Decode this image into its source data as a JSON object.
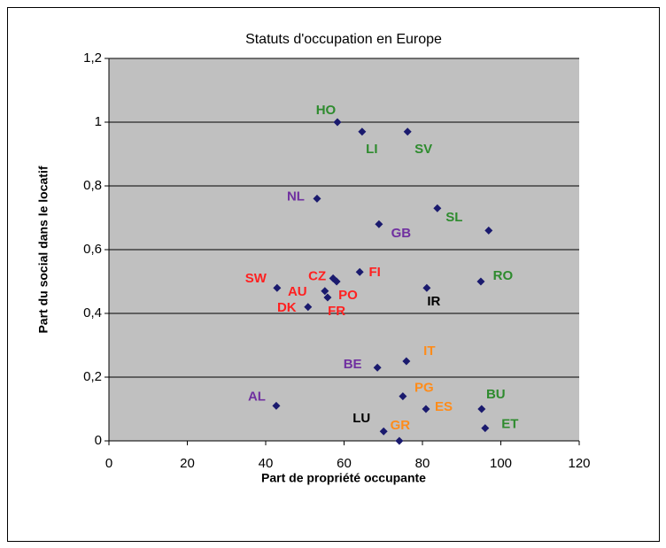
{
  "chart_data": {
    "type": "scatter",
    "title": "Statuts d'occupation en Europe",
    "x_label": "Part de propriété occupante",
    "y_label": "Part du social dans le locatif",
    "xlim": [
      0,
      120
    ],
    "xticks": [
      0,
      20,
      40,
      60,
      80,
      100,
      120
    ],
    "ylim": [
      0,
      1.2
    ],
    "yticks": [
      0,
      {
        "value": 0.2,
        "label": "0,2"
      },
      {
        "value": 0.4,
        "label": "0,4"
      },
      {
        "value": 0.6,
        "label": "0,6"
      },
      {
        "value": 0.8,
        "label": "0,8"
      },
      1,
      {
        "value": 1.2,
        "label": "1,2"
      }
    ],
    "grid": true,
    "plot_background": "#c0c0c0",
    "series": [
      {
        "color": "#1a1a6e",
        "x": [
          58.3,
          64.6,
          76.2,
          53.1,
          68.9,
          83.8,
          96.9,
          94.9,
          81.1,
          64.0,
          57.2,
          58.1,
          42.9,
          55.1,
          55.8,
          50.8,
          75.9,
          68.5,
          75.0,
          42.7,
          80.9,
          95.1,
          96.0,
          70.1,
          74.1
        ],
        "values": [
          1.0,
          0.97,
          0.97,
          0.76,
          0.68,
          0.73,
          0.66,
          0.5,
          0.48,
          0.53,
          0.51,
          0.5,
          0.48,
          0.47,
          0.45,
          0.42,
          0.25,
          0.23,
          0.14,
          0.11,
          0.1,
          0.1,
          0.04,
          0.03,
          0.0
        ],
        "point_labels": [
          "HO",
          "LI",
          "SV",
          "NL",
          "GB",
          "SL",
          null,
          "RO",
          "IR",
          "FI",
          "CZ",
          "FR",
          "SW",
          "AU",
          "PO",
          "DK",
          "IT",
          "BE",
          "PG",
          "AL",
          "ES",
          "BU",
          "ET",
          "LU",
          "GR"
        ],
        "label_colors": [
          "#2e8b2e",
          "#2e8b2e",
          "#2e8b2e",
          "#7030a0",
          "#7030a0",
          "#2e8b2e",
          null,
          "#2e8b2e",
          "#000000",
          "#ff2020",
          "#ff2020",
          "#ff2020",
          "#ff2020",
          "#ff2020",
          "#ff2020",
          "#ff2020",
          "#ff8c1a",
          "#7030a0",
          "#ff8c1a",
          "#7030a0",
          "#ff8c1a",
          "#2e8b2e",
          "#2e8b2e",
          "#000000",
          "#ff8c1a"
        ]
      }
    ]
  }
}
